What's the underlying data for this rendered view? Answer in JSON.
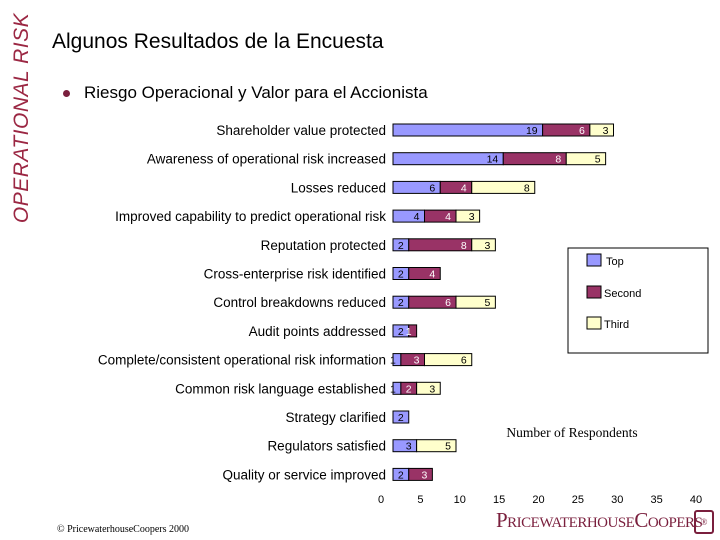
{
  "side_title": "OPERATIONAL RISK",
  "title": "Algunos Resultados de la Encuesta",
  "bullet": "Riesgo Operacional y Valor para el Accionista",
  "footer": {
    "copyright": "© PricewaterhouseCoopers 2000",
    "logo_text": "PricewaterhouseCoopers",
    "logo_mark": "®"
  },
  "colors": {
    "top": "#9999ff",
    "second": "#993366",
    "third": "#ffffcc"
  },
  "chart_data": {
    "type": "bar",
    "orientation": "horizontal",
    "stacked": true,
    "categories": [
      "Shareholder value protected",
      "Awareness of operational risk increased",
      "Losses reduced",
      "Improved capability to predict operational risk",
      "Reputation protected",
      "Cross-enterprise risk identified",
      "Control breakdowns reduced",
      "Audit points addressed",
      "Complete/consistent operational risk information",
      "Common risk language established",
      "Strategy clarified",
      "Regulators satisfied",
      "Quality or service improved"
    ],
    "series": [
      {
        "name": "Top",
        "values": [
          19,
          14,
          6,
          4,
          2,
          2,
          2,
          2,
          1,
          1,
          2,
          3,
          2
        ]
      },
      {
        "name": "Second",
        "values": [
          6,
          8,
          4,
          4,
          8,
          4,
          6,
          1,
          3,
          2,
          null,
          null,
          3
        ]
      },
      {
        "name": "Third",
        "values": [
          3,
          5,
          8,
          3,
          3,
          null,
          5,
          null,
          6,
          3,
          null,
          5,
          null
        ]
      }
    ],
    "xlabel": "Number of Respondents",
    "ylabel": "",
    "xlim": [
      0,
      40
    ],
    "xticks": [
      0,
      5,
      10,
      15,
      20,
      25,
      30,
      35,
      40
    ],
    "legend": [
      "Top",
      "Second",
      "Third"
    ],
    "legend_position": "right"
  }
}
